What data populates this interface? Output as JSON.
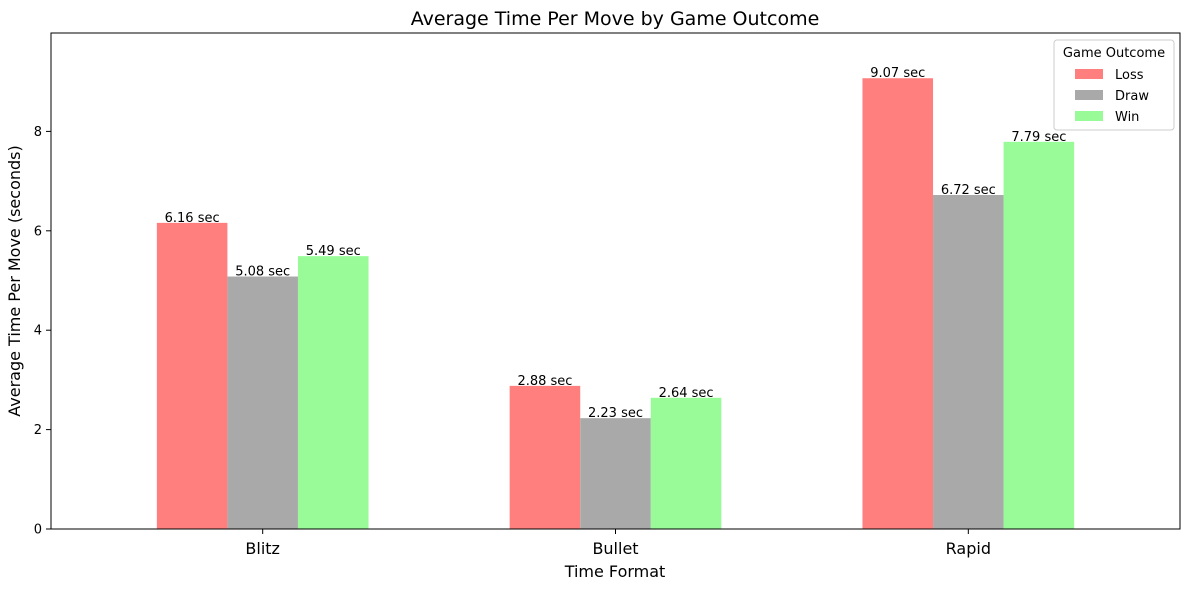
{
  "chart_data": {
    "type": "bar",
    "title": "Average Time Per Move by Game Outcome",
    "xlabel": "Time Format",
    "ylabel": "Average Time Per Move (seconds)",
    "categories": [
      "Blitz",
      "Bullet",
      "Rapid"
    ],
    "ylim": [
      0,
      9.98
    ],
    "yticks": [
      0,
      2,
      4,
      6,
      8
    ],
    "value_suffix": " sec",
    "grid": false,
    "legend": {
      "title": "Game Outcome",
      "placement": "top-right"
    },
    "series": [
      {
        "name": "Loss",
        "color": "#ff7f7f",
        "values": [
          6.16,
          2.88,
          9.07
        ]
      },
      {
        "name": "Draw",
        "color": "#a9a9a9",
        "values": [
          5.08,
          2.23,
          6.72
        ]
      },
      {
        "name": "Win",
        "color": "#98fb98",
        "values": [
          5.49,
          2.64,
          7.79
        ]
      }
    ]
  }
}
